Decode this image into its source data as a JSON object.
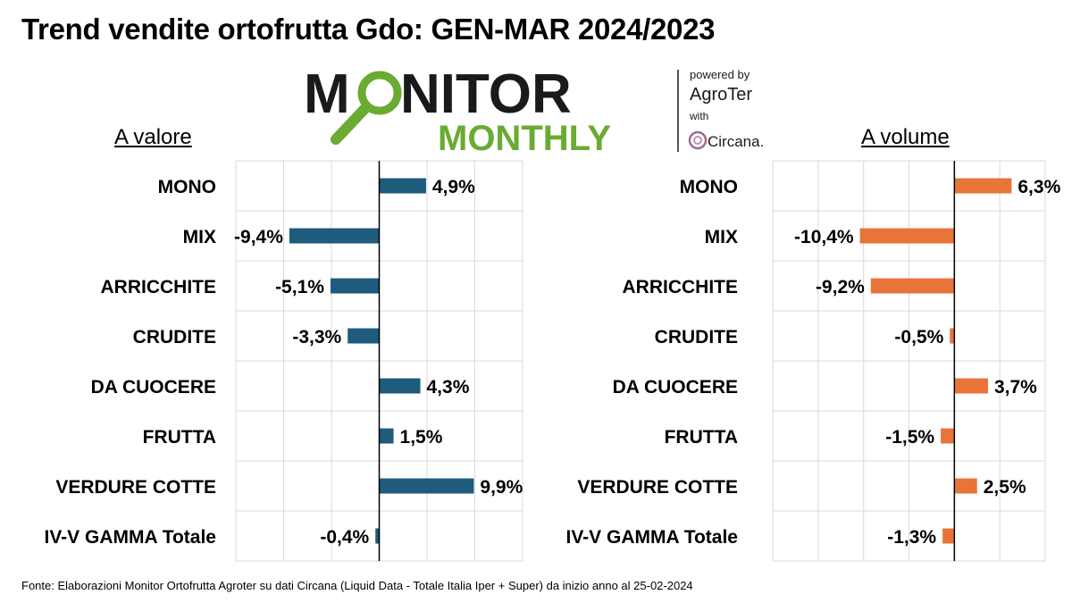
{
  "title": "Trend vendite ortofrutta Gdo: GEN-MAR 2024/2023",
  "logo": {
    "word1_pre": "M",
    "word1_post": "NITOR",
    "word2": "MONTHLY",
    "powered_by": "powered by",
    "agroter": "AgroTer",
    "with": "with",
    "circana": "Circana."
  },
  "footer": "Fonte: Elaborazioni Monitor Ortofrutta Agroter su dati Circana (Liquid Data - Totale Italia Iper + Super) da inizio anno al 25-02-2024",
  "colors": {
    "valore": "#1f5b7c",
    "volume": "#e9743a",
    "grid": "#d9d9d9",
    "logo_dark": "#1a1a1a",
    "logo_green": "#6aab32"
  },
  "chart_data": [
    {
      "type": "bar",
      "orientation": "horizontal",
      "subtitle": "A valore",
      "categories": [
        "MONO",
        "MIX",
        "ARRICCHITE",
        "CRUDITE",
        "DA CUOCERE",
        "FRUTTA",
        "VERDURE COTTE",
        "IV-V GAMMA Totale"
      ],
      "values": [
        4.9,
        -9.4,
        -5.1,
        -3.3,
        4.3,
        1.5,
        9.9,
        -0.4
      ],
      "data_labels": [
        "4,9%",
        "-9,4%",
        "-5,1%",
        "-3,3%",
        "4,3%",
        "1,5%",
        "9,9%",
        "-0,4%"
      ],
      "xlim": [
        -15,
        15
      ],
      "grid": true
    },
    {
      "type": "bar",
      "orientation": "horizontal",
      "subtitle": "A volume",
      "categories": [
        "MONO",
        "MIX",
        "ARRICCHITE",
        "CRUDITE",
        "DA CUOCERE",
        "FRUTTA",
        "VERDURE COTTE",
        "IV-V GAMMA Totale"
      ],
      "values": [
        6.3,
        -10.4,
        -9.2,
        -0.5,
        3.7,
        -1.5,
        2.5,
        -1.3
      ],
      "data_labels": [
        "6,3%",
        "-10,4%",
        "-9,2%",
        "-0,5%",
        "3,7%",
        "-1,5%",
        "2,5%",
        "-1,3%"
      ],
      "xlim": [
        -20,
        10
      ],
      "grid": true
    }
  ]
}
